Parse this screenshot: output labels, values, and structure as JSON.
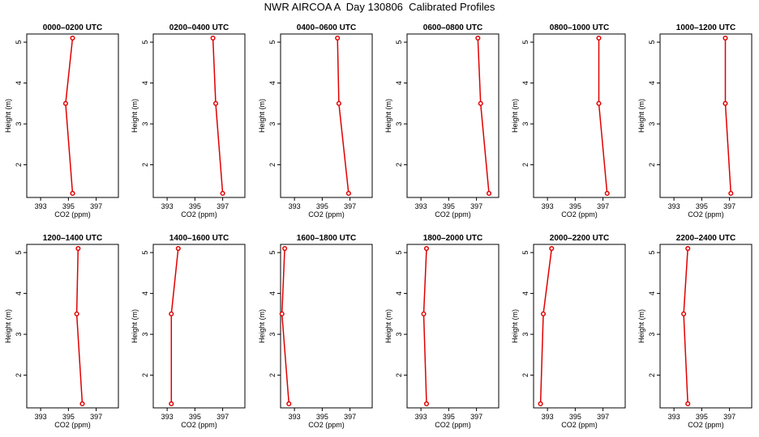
{
  "title": "NWR AIRCOA A  Day 130806  Calibrated Profiles",
  "chart_data": {
    "type": "line",
    "xlabel": "CO2 (ppm)",
    "ylabel": "Height (m)",
    "xlim": [
      392,
      398.6
    ],
    "ylim": [
      1.2,
      5.2
    ],
    "x_ticks": [
      393,
      395,
      397
    ],
    "y_ticks": [
      2,
      3,
      4,
      5
    ],
    "line_color": "#e00000",
    "panels": [
      {
        "title": "0000–0200 UTC",
        "co2": [
          395.3,
          394.8,
          395.3
        ],
        "height": [
          5.1,
          3.5,
          1.3
        ]
      },
      {
        "title": "0200–0400 UTC",
        "co2": [
          396.3,
          396.5,
          397.0
        ],
        "height": [
          5.1,
          3.5,
          1.3
        ]
      },
      {
        "title": "0400–0600 UTC",
        "co2": [
          396.1,
          396.2,
          396.9
        ],
        "height": [
          5.1,
          3.5,
          1.3
        ]
      },
      {
        "title": "0600–0800 UTC",
        "co2": [
          397.1,
          397.3,
          397.9
        ],
        "height": [
          5.1,
          3.5,
          1.3
        ]
      },
      {
        "title": "0800–1000 UTC",
        "co2": [
          396.7,
          396.7,
          397.3
        ],
        "height": [
          5.1,
          3.5,
          1.3
        ]
      },
      {
        "title": "1000–1200 UTC",
        "co2": [
          396.7,
          396.7,
          397.1
        ],
        "height": [
          5.1,
          3.5,
          1.3
        ]
      },
      {
        "title": "1200–1400 UTC",
        "co2": [
          395.7,
          395.6,
          396.0
        ],
        "height": [
          5.1,
          3.5,
          1.3
        ]
      },
      {
        "title": "1400–1600 UTC",
        "co2": [
          393.8,
          393.3,
          393.3
        ],
        "height": [
          5.1,
          3.5,
          1.3
        ]
      },
      {
        "title": "1600–1800 UTC",
        "co2": [
          392.3,
          392.1,
          392.6
        ],
        "height": [
          5.1,
          3.5,
          1.3
        ]
      },
      {
        "title": "1800–2000 UTC",
        "co2": [
          393.4,
          393.2,
          393.4
        ],
        "height": [
          5.1,
          3.5,
          1.3
        ]
      },
      {
        "title": "2000–2200 UTC",
        "co2": [
          393.3,
          392.7,
          392.5
        ],
        "height": [
          5.1,
          3.5,
          1.3
        ]
      },
      {
        "title": "2200–2400 UTC",
        "co2": [
          394.0,
          393.7,
          394.0
        ],
        "height": [
          5.1,
          3.5,
          1.3
        ]
      }
    ]
  }
}
